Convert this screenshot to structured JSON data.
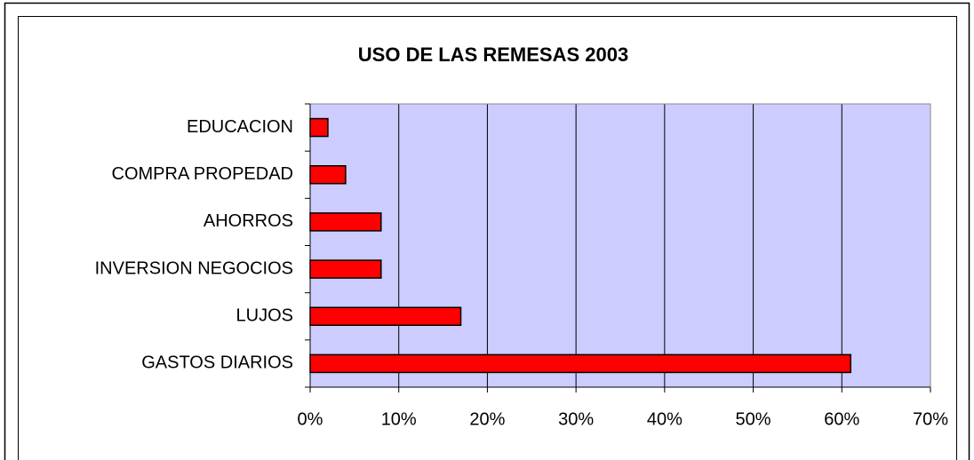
{
  "chart_data": {
    "type": "bar",
    "orientation": "horizontal",
    "title": "USO DE LAS REMESAS 2003",
    "categories": [
      "EDUCACION",
      "COMPRA PROPEDAD",
      "AHORROS",
      "INVERSION NEGOCIOS",
      "LUJOS",
      "GASTOS DIARIOS"
    ],
    "values": [
      2,
      4,
      8,
      8,
      17,
      61
    ],
    "color": "#ff0000",
    "xlim": [
      0,
      70
    ],
    "xticks": [
      {
        "value": 0,
        "label": "0%"
      },
      {
        "value": 10,
        "label": "10%"
      },
      {
        "value": 20,
        "label": "20%"
      },
      {
        "value": 30,
        "label": "30%"
      },
      {
        "value": 40,
        "label": "40%"
      },
      {
        "value": 50,
        "label": "50%"
      },
      {
        "value": 60,
        "label": "60%"
      },
      {
        "value": 70,
        "label": "70%"
      }
    ],
    "grid": true
  }
}
